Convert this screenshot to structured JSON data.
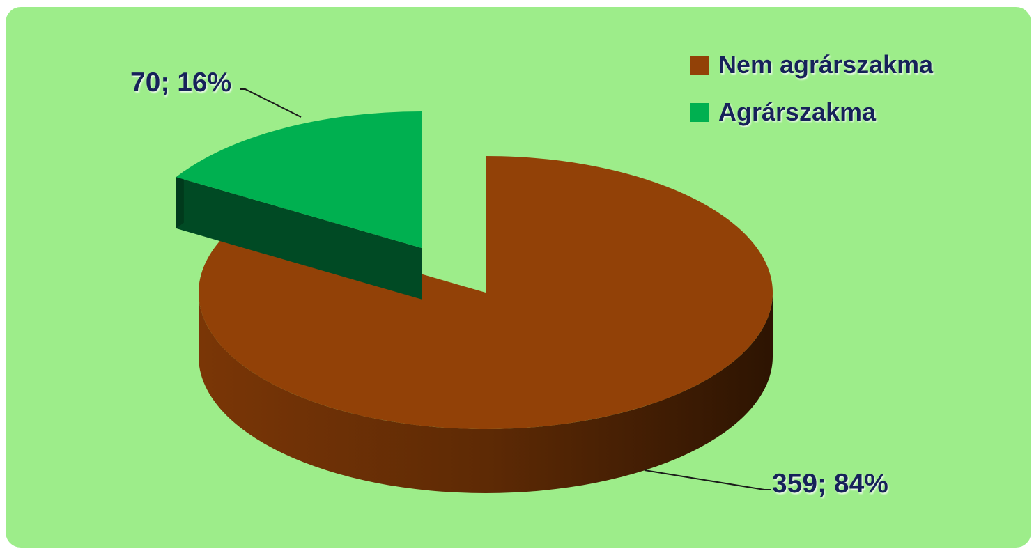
{
  "chart_data": {
    "type": "pie",
    "title": "",
    "slices": [
      {
        "name": "Nem agrárszakma",
        "value": 359,
        "percent": 84,
        "label": "359; 84%",
        "color": "#924107"
      },
      {
        "name": "Agrárszakma",
        "value": 70,
        "percent": 16,
        "label": "70; 16%",
        "color": "#00b050"
      }
    ],
    "legend": {
      "position": "top-right",
      "entries": [
        "Nem agrárszakma",
        "Agrárszakma"
      ]
    },
    "three_d": true,
    "exploded": "Agrárszakma"
  },
  "colors": {
    "background": "#9ded8a",
    "label_text": "#12205a"
  }
}
